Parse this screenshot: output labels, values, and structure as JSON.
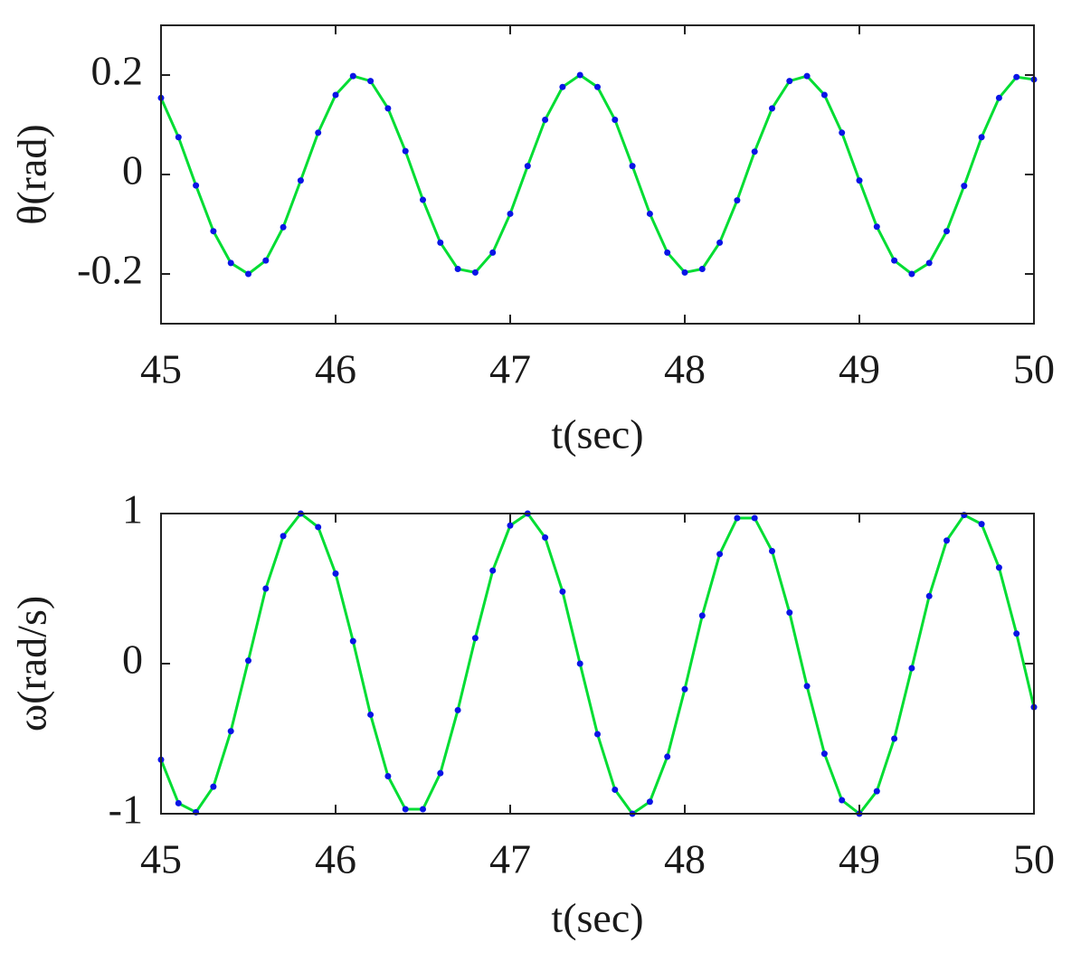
{
  "chart_data": [
    {
      "type": "line",
      "xlabel": "t(sec)",
      "ylabel": "θ(rad)",
      "x": [
        45.0,
        45.1,
        45.2,
        45.3,
        45.4,
        45.5,
        45.6,
        45.7,
        45.8,
        45.9,
        46.0,
        46.1,
        46.2,
        46.3,
        46.4,
        46.5,
        46.6,
        46.7,
        46.8,
        46.9,
        47.0,
        47.1,
        47.2,
        47.3,
        47.4,
        47.5,
        47.6,
        47.7,
        47.8,
        47.9,
        48.0,
        48.1,
        48.2,
        48.3,
        48.4,
        48.5,
        48.6,
        48.7,
        48.8,
        48.9,
        49.0,
        49.1,
        49.2,
        49.3,
        49.4,
        49.5,
        49.6,
        49.7,
        49.8,
        49.9,
        50.0
      ],
      "series": [
        {
          "color": "#00dd33",
          "style": "line",
          "values": [
            0.154,
            0.075,
            -0.022,
            -0.114,
            -0.178,
            -0.2,
            -0.173,
            -0.106,
            -0.012,
            0.084,
            0.16,
            0.198,
            0.188,
            0.133,
            0.047,
            -0.051,
            -0.137,
            -0.19,
            -0.197,
            -0.157,
            -0.079,
            0.017,
            0.11,
            0.176,
            0.2,
            0.176,
            0.11,
            0.017,
            -0.079,
            -0.157,
            -0.197,
            -0.19,
            -0.137,
            -0.052,
            0.046,
            0.133,
            0.188,
            0.198,
            0.16,
            0.084,
            -0.012,
            -0.105,
            -0.173,
            -0.2,
            -0.178,
            -0.114,
            -0.023,
            0.075,
            0.154,
            0.196,
            0.191
          ]
        },
        {
          "color": "#0a14e6",
          "style": "dots",
          "values": [
            0.154,
            0.075,
            -0.022,
            -0.114,
            -0.178,
            -0.2,
            -0.173,
            -0.106,
            -0.012,
            0.084,
            0.16,
            0.198,
            0.188,
            0.133,
            0.047,
            -0.051,
            -0.137,
            -0.19,
            -0.197,
            -0.157,
            -0.079,
            0.017,
            0.11,
            0.176,
            0.2,
            0.176,
            0.11,
            0.017,
            -0.079,
            -0.157,
            -0.197,
            -0.19,
            -0.137,
            -0.052,
            0.046,
            0.133,
            0.188,
            0.198,
            0.16,
            0.084,
            -0.012,
            -0.105,
            -0.173,
            -0.2,
            -0.178,
            -0.114,
            -0.023,
            0.075,
            0.154,
            0.196,
            0.191
          ]
        }
      ],
      "xlim": [
        45,
        50
      ],
      "xticks": [
        45,
        46,
        47,
        48,
        49,
        50
      ],
      "ylim": [
        -0.3,
        0.3
      ],
      "yticks": [
        -0.2,
        0,
        0.2
      ]
    },
    {
      "type": "line",
      "xlabel": "t(sec)",
      "ylabel": "ω(rad/s)",
      "x": [
        45.0,
        45.1,
        45.2,
        45.3,
        45.4,
        45.5,
        45.6,
        45.7,
        45.8,
        45.9,
        46.0,
        46.1,
        46.2,
        46.3,
        46.4,
        46.5,
        46.6,
        46.7,
        46.8,
        46.9,
        47.0,
        47.1,
        47.2,
        47.3,
        47.4,
        47.5,
        47.6,
        47.7,
        47.8,
        47.9,
        48.0,
        48.1,
        48.2,
        48.3,
        48.4,
        48.5,
        48.6,
        48.7,
        48.8,
        48.9,
        49.0,
        49.1,
        49.2,
        49.3,
        49.4,
        49.5,
        49.6,
        49.7,
        49.8,
        49.9,
        50.0
      ],
      "series": [
        {
          "color": "#00dd33",
          "style": "line",
          "values": [
            -0.64,
            -0.93,
            -0.99,
            -0.82,
            -0.45,
            0.02,
            0.5,
            0.85,
            1.0,
            0.91,
            0.6,
            0.15,
            -0.34,
            -0.75,
            -0.97,
            -0.97,
            -0.73,
            -0.31,
            0.17,
            0.62,
            0.92,
            1.0,
            0.84,
            0.48,
            0.0,
            -0.47,
            -0.84,
            -1.0,
            -0.92,
            -0.62,
            -0.17,
            0.32,
            0.73,
            0.97,
            0.97,
            0.75,
            0.34,
            -0.15,
            -0.6,
            -0.91,
            -1.0,
            -0.85,
            -0.5,
            -0.03,
            0.45,
            0.82,
            0.99,
            0.93,
            0.64,
            0.2,
            -0.29
          ]
        },
        {
          "color": "#0a14e6",
          "style": "dots",
          "values": [
            -0.64,
            -0.93,
            -0.99,
            -0.82,
            -0.45,
            0.02,
            0.5,
            0.85,
            1.0,
            0.91,
            0.6,
            0.15,
            -0.34,
            -0.75,
            -0.97,
            -0.97,
            -0.73,
            -0.31,
            0.17,
            0.62,
            0.92,
            1.0,
            0.84,
            0.48,
            0.0,
            -0.47,
            -0.84,
            -1.0,
            -0.92,
            -0.62,
            -0.17,
            0.32,
            0.73,
            0.97,
            0.97,
            0.75,
            0.34,
            -0.15,
            -0.6,
            -0.91,
            -1.0,
            -0.85,
            -0.5,
            -0.03,
            0.45,
            0.82,
            0.99,
            0.93,
            0.64,
            0.2,
            -0.29
          ]
        }
      ],
      "xlim": [
        45,
        50
      ],
      "xticks": [
        45,
        46,
        47,
        48,
        49,
        50
      ],
      "ylim": [
        -1,
        1
      ],
      "yticks": [
        -1,
        0,
        1
      ]
    }
  ]
}
